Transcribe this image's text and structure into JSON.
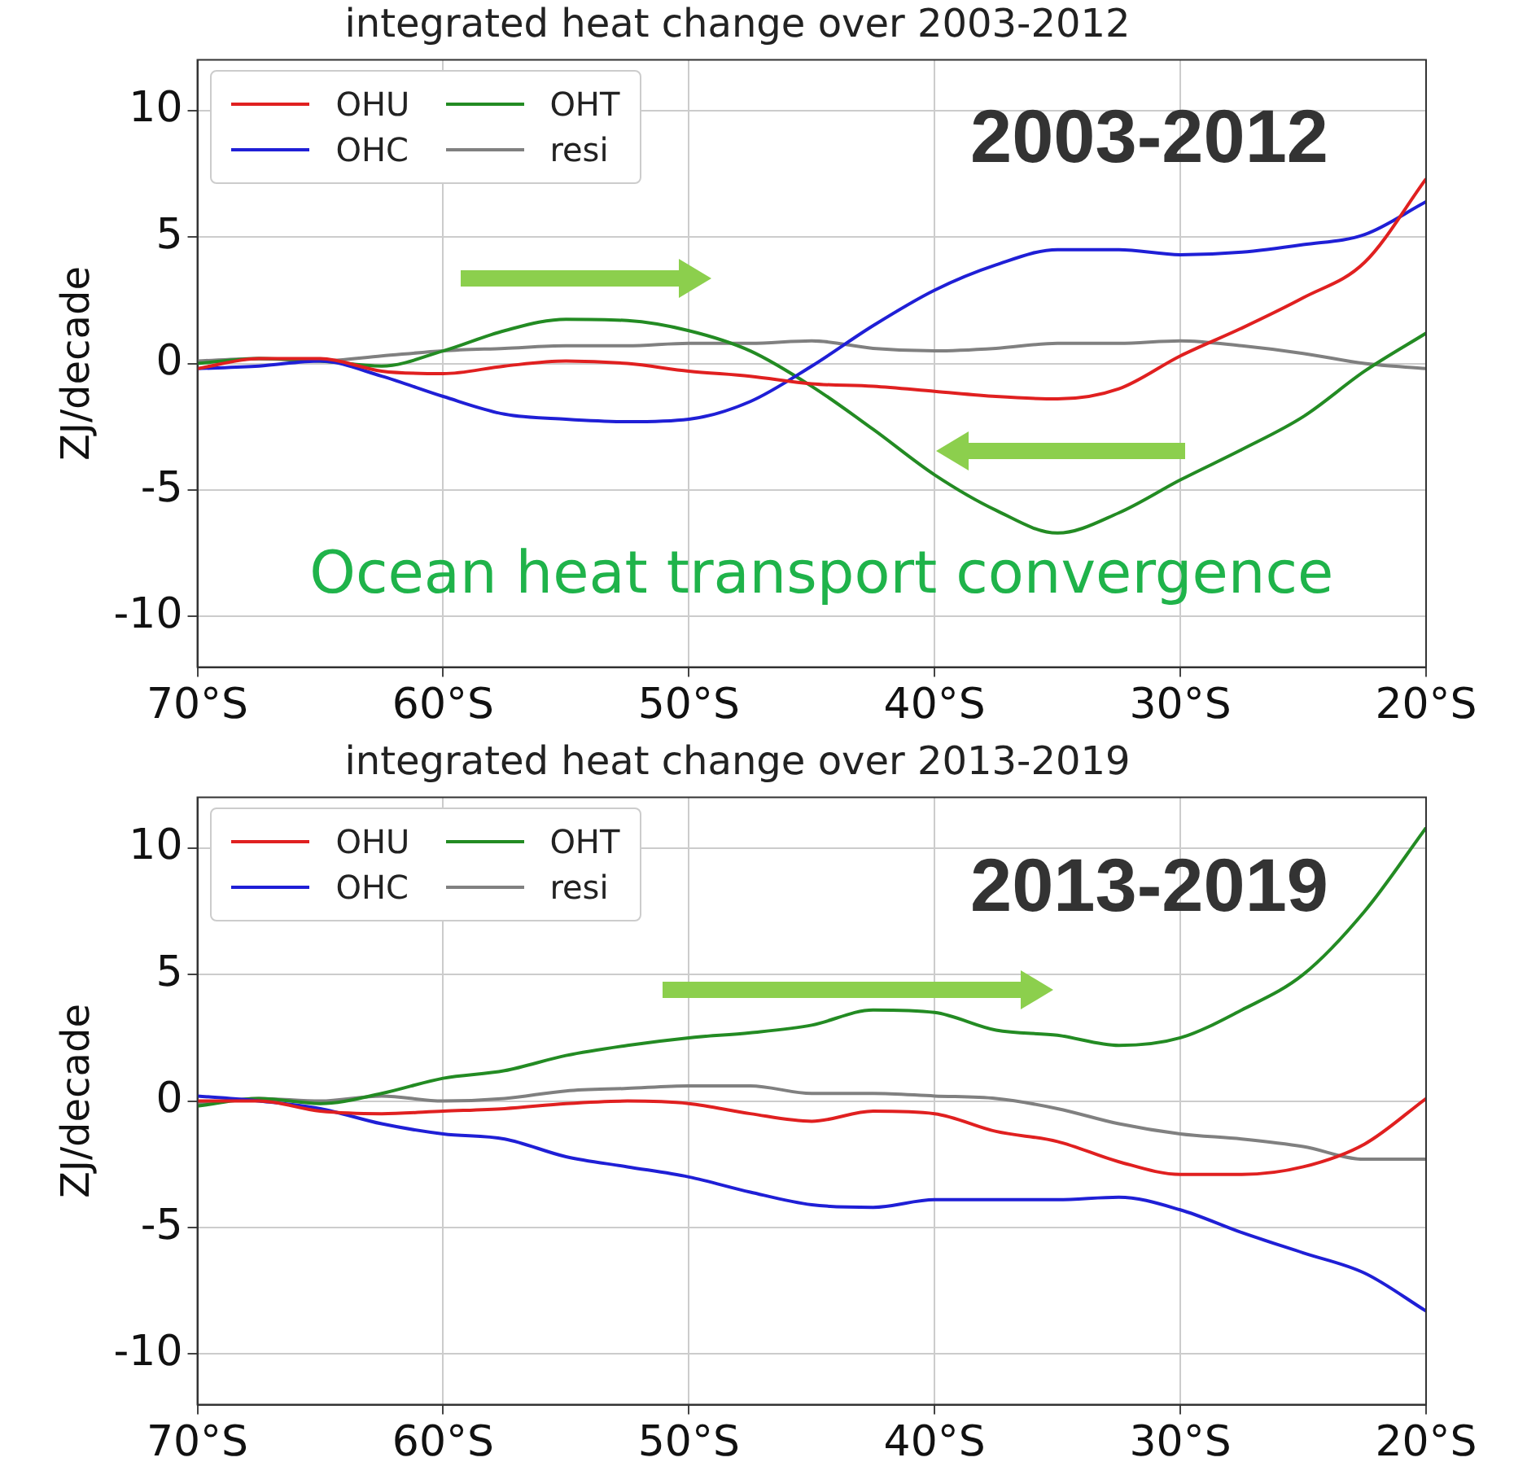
{
  "chart_data": [
    {
      "type": "line",
      "title": "integrated heat change over 2003-2012",
      "ylabel": "ZJ/decade",
      "x": [
        -70,
        -67.5,
        -65,
        -62.5,
        -60,
        -57.5,
        -55,
        -52.5,
        -50,
        -47.5,
        -45,
        -42.5,
        -40,
        -37.5,
        -35,
        -32.5,
        -30,
        -27.5,
        -25,
        -22.5,
        -20
      ],
      "series": [
        {
          "name": "OHU",
          "color": "#e02020",
          "values": [
            -0.2,
            0.2,
            0.2,
            -0.3,
            -0.4,
            -0.1,
            0.1,
            0,
            -0.3,
            -0.5,
            -0.8,
            -0.9,
            -1.1,
            -1.3,
            -1.4,
            -1.0,
            0.3,
            1.4,
            2.6,
            4.0,
            7.3
          ]
        },
        {
          "name": "OHC",
          "color": "#1f1fd6",
          "values": [
            -0.2,
            -0.1,
            0.1,
            -0.5,
            -1.3,
            -2.0,
            -2.2,
            -2.3,
            -2.2,
            -1.5,
            -0.1,
            1.5,
            2.9,
            3.9,
            4.5,
            4.5,
            4.3,
            4.4,
            4.7,
            5.1,
            6.4
          ]
        },
        {
          "name": "OHT",
          "color": "#238b23",
          "values": [
            0,
            0.2,
            0.1,
            -0.1,
            0.5,
            1.3,
            1.75,
            1.7,
            1.3,
            0.5,
            -0.9,
            -2.6,
            -4.4,
            -5.8,
            -6.7,
            -5.9,
            -4.6,
            -3.4,
            -2.1,
            -0.3,
            1.2
          ]
        },
        {
          "name": "resi",
          "color": "#808080",
          "values": [
            0.1,
            0.2,
            0.1,
            0.3,
            0.5,
            0.6,
            0.7,
            0.7,
            0.8,
            0.8,
            0.9,
            0.6,
            0.5,
            0.6,
            0.8,
            0.8,
            0.9,
            0.7,
            0.4,
            0,
            -0.2
          ]
        }
      ],
      "xlim": [
        -70,
        -20
      ],
      "xticks": [
        {
          "value": -70,
          "label": "70°S"
        },
        {
          "value": -60,
          "label": "60°S"
        },
        {
          "value": -50,
          "label": "50°S"
        },
        {
          "value": -40,
          "label": "40°S"
        },
        {
          "value": -30,
          "label": "30°S"
        },
        {
          "value": -20,
          "label": "20°S"
        }
      ],
      "ylim": [
        -12,
        12
      ],
      "yticks": [
        -10,
        -5,
        0,
        5,
        10
      ],
      "grid": true,
      "legend": "top left",
      "marker": "none",
      "line_style": "solid",
      "annotations": [
        "2003-2012",
        "Ocean heat transport convergence"
      ]
    },
    {
      "type": "line",
      "title": "integrated heat change over 2013-2019",
      "ylabel": "ZJ/decade",
      "x": [
        -70,
        -67.5,
        -65,
        -62.5,
        -60,
        -57.5,
        -55,
        -52.5,
        -50,
        -47.5,
        -45,
        -42.5,
        -40,
        -37.5,
        -35,
        -32.5,
        -30,
        -27.5,
        -25,
        -22.5,
        -20
      ],
      "series": [
        {
          "name": "OHU",
          "color": "#e02020",
          "values": [
            0,
            0,
            -0.4,
            -0.5,
            -0.4,
            -0.3,
            -0.1,
            0,
            -0.1,
            -0.5,
            -0.8,
            -0.4,
            -0.5,
            -1.2,
            -1.6,
            -2.4,
            -2.9,
            -2.9,
            -2.6,
            -1.7,
            0.1
          ]
        },
        {
          "name": "OHC",
          "color": "#1f1fd6",
          "values": [
            0.2,
            0,
            -0.3,
            -0.9,
            -1.3,
            -1.5,
            -2.2,
            -2.6,
            -3.0,
            -3.6,
            -4.1,
            -4.2,
            -3.9,
            -3.9,
            -3.9,
            -3.8,
            -4.3,
            -5.2,
            -6.0,
            -6.8,
            -8.3
          ]
        },
        {
          "name": "OHT",
          "color": "#238b23",
          "values": [
            -0.2,
            0.1,
            -0.1,
            0.3,
            0.9,
            1.2,
            1.8,
            2.2,
            2.5,
            2.7,
            3.0,
            3.6,
            3.5,
            2.8,
            2.6,
            2.2,
            2.5,
            3.6,
            5.0,
            7.5,
            10.8
          ]
        },
        {
          "name": "resi",
          "color": "#808080",
          "values": [
            -0.1,
            0.1,
            0,
            0.2,
            0,
            0.1,
            0.4,
            0.5,
            0.6,
            0.6,
            0.3,
            0.3,
            0.2,
            0.1,
            -0.3,
            -0.9,
            -1.3,
            -1.5,
            -1.8,
            -2.3,
            -2.3
          ]
        }
      ],
      "xlim": [
        -70,
        -20
      ],
      "xticks": [
        {
          "value": -70,
          "label": "70°S"
        },
        {
          "value": -60,
          "label": "60°S"
        },
        {
          "value": -50,
          "label": "50°S"
        },
        {
          "value": -40,
          "label": "40°S"
        },
        {
          "value": -30,
          "label": "30°S"
        },
        {
          "value": -20,
          "label": "20°S"
        }
      ],
      "ylim": [
        -12,
        12
      ],
      "yticks": [
        -10,
        -5,
        0,
        5,
        10
      ],
      "grid": true,
      "legend": "top left",
      "marker": "none",
      "line_style": "solid",
      "annotations": [
        "2013-2019"
      ]
    }
  ]
}
